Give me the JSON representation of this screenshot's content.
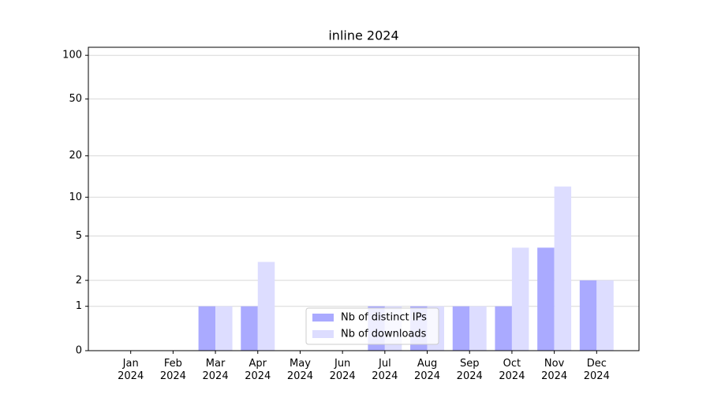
{
  "chart_data": {
    "type": "bar",
    "title": "inline 2024",
    "categories": [
      "Jan 2024",
      "Feb 2024",
      "Mar 2024",
      "Apr 2024",
      "May 2024",
      "Jun 2024",
      "Jul 2024",
      "Aug 2024",
      "Sep 2024",
      "Oct 2024",
      "Nov 2024",
      "Dec 2024"
    ],
    "series": [
      {
        "name": "Nb of distinct IPs",
        "color": "#aaaaff",
        "values": [
          0,
          0,
          1,
          1,
          0,
          0,
          1,
          1,
          1,
          1,
          4,
          2
        ]
      },
      {
        "name": "Nb of downloads",
        "color": "#ddddff",
        "values": [
          0,
          0,
          1,
          3,
          0,
          0,
          1,
          1,
          1,
          4,
          12,
          2
        ]
      }
    ],
    "yscale": "log1p",
    "ylim": [
      0,
      113.5
    ],
    "yticks": [
      0,
      1,
      2,
      5,
      10,
      20,
      50,
      100
    ],
    "grid": true,
    "legend": "lower center"
  }
}
